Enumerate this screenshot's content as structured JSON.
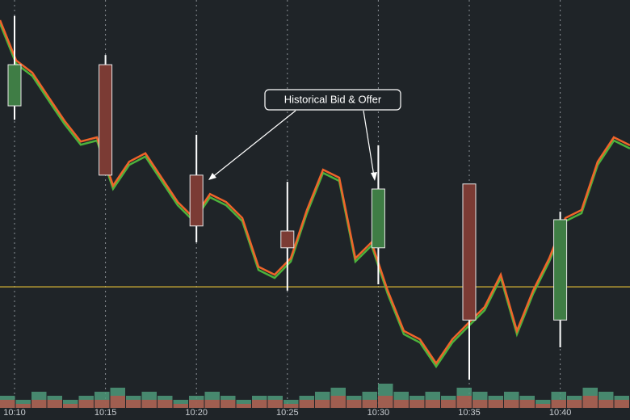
{
  "chart_data": {
    "type": "candlestick",
    "categories": [
      "10:10",
      "10:15",
      "10:20",
      "10:25",
      "10:30",
      "10:35",
      "10:40"
    ],
    "candles": [
      {
        "open": 74.8,
        "high": 96.2,
        "low": 71.5,
        "close": 84.6,
        "color": "#3f7d45"
      },
      {
        "open": 84.6,
        "high": 86.9,
        "low": 58.3,
        "close": 58.3,
        "color": "#7b3b34"
      },
      {
        "open": 58.3,
        "high": 67.9,
        "low": 42.3,
        "close": 46.2,
        "color": "#7b3b34"
      },
      {
        "open": 45.0,
        "high": 56.7,
        "low": 30.8,
        "close": 41.0,
        "color": "#7b3b34"
      },
      {
        "open": 41.0,
        "high": 65.4,
        "low": 32.3,
        "close": 55.0,
        "color": "#3f7d45"
      },
      {
        "open": 56.2,
        "high": 56.2,
        "low": 9.6,
        "close": 23.8,
        "color": "#7b3b34"
      },
      {
        "open": 23.8,
        "high": 49.6,
        "low": 17.3,
        "close": 47.7,
        "color": "#3f7d45"
      }
    ],
    "price": {
      "color": "#f0642a",
      "shadow_color": "#4cb23c",
      "values": [
        95.2,
        85.6,
        82.7,
        76.9,
        71.2,
        66.3,
        67.3,
        55.8,
        61.5,
        63.5,
        57.7,
        51.9,
        48.1,
        53.8,
        51.9,
        48.1,
        36.5,
        34.6,
        38.5,
        50.0,
        59.6,
        57.7,
        38.5,
        42.3,
        30.8,
        21.2,
        19.2,
        13.5,
        19.2,
        23.1,
        26.9,
        34.6,
        21.2,
        30.8,
        38.5,
        48.1,
        50.0,
        61.5,
        67.3,
        65.4
      ]
    },
    "level": {
      "value": 31.7,
      "color": "#d8b634"
    },
    "volume": [
      {
        "color": "#4f9a7a",
        "values": [
          3,
          2,
          4,
          3,
          2,
          3,
          4,
          5,
          3,
          4,
          3,
          2,
          3,
          4,
          3,
          2,
          3,
          3,
          2,
          3,
          4,
          5,
          3,
          4,
          6,
          4,
          3,
          4,
          3,
          5,
          4,
          3,
          4,
          3,
          2,
          4,
          3,
          5,
          4,
          3
        ]
      },
      {
        "color": "#b0574b",
        "values": [
          2,
          1,
          2,
          2,
          1,
          2,
          2,
          3,
          2,
          2,
          2,
          1,
          2,
          2,
          2,
          1,
          2,
          2,
          1,
          2,
          2,
          3,
          2,
          2,
          3,
          2,
          2,
          2,
          2,
          3,
          2,
          2,
          2,
          2,
          1,
          2,
          2,
          3,
          2,
          2
        ]
      }
    ],
    "ylim": [
      0,
      100
    ],
    "vlim": [
      0,
      10
    ],
    "annotation": "Historical Bid & Offer"
  }
}
